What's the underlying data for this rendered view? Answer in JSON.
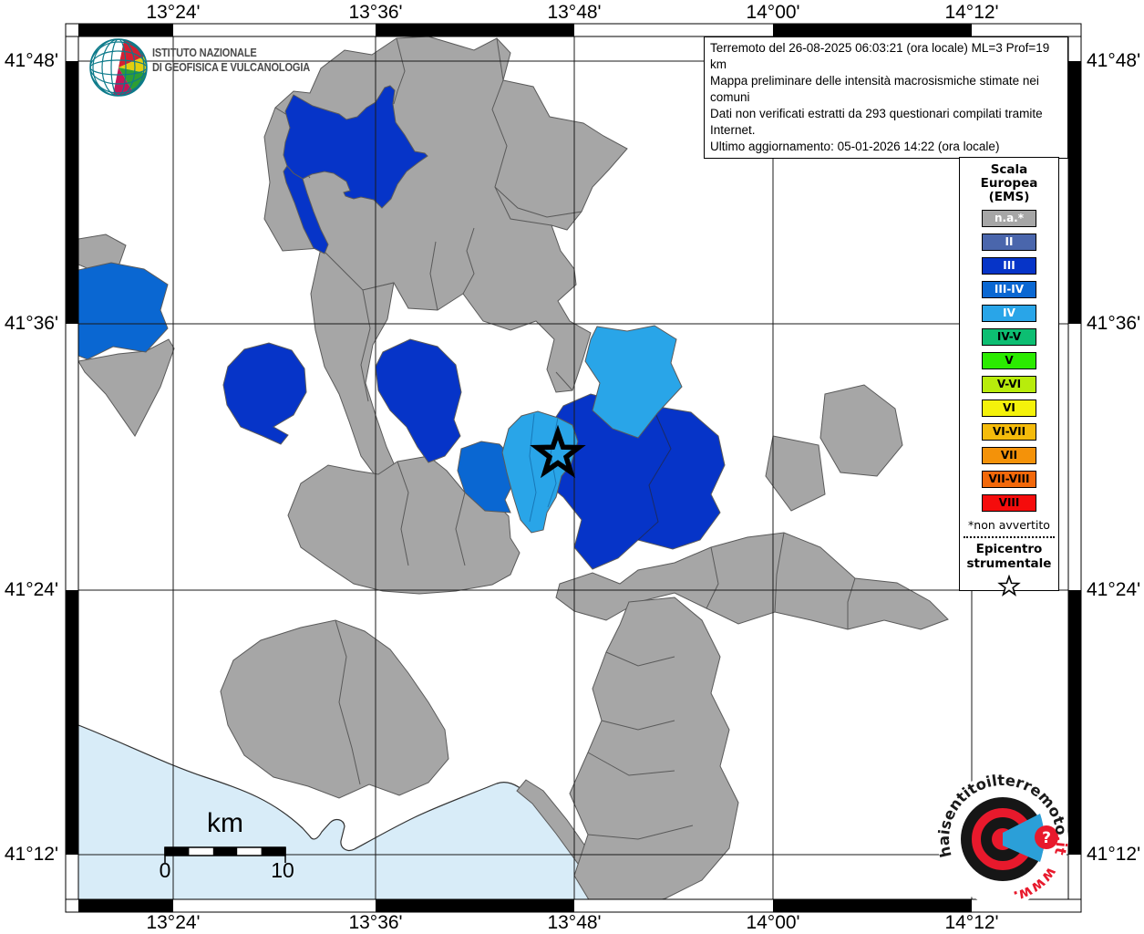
{
  "branding": {
    "org_line1": "ISTITUTO NAZIONALE",
    "org_line2": "DI GEOFISICA E VULCANOLOGIA"
  },
  "info_box": {
    "lines": [
      "Terremoto del 26-08-2025 06:03:21 (ora locale) ML=3 Prof=19 km",
      "Mappa preliminare delle intensità macrosismiche stimate nei comuni",
      "Dati non verificati estratti da 293 questionari compilati tramite Internet.",
      "Ultimo aggiornamento: 05-01-2026 14:22 (ora locale)"
    ]
  },
  "legend": {
    "title_lines": [
      "Scala",
      "Europea",
      "(EMS)"
    ],
    "items": [
      {
        "label": "n.a.*",
        "color": "#A6A6A6",
        "text_color": "#FFFFFF"
      },
      {
        "label": "II",
        "color": "#4A66AC",
        "text_color": "#FFFFFF"
      },
      {
        "label": "III",
        "color": "#0634C8",
        "text_color": "#FFFFFF"
      },
      {
        "label": "III-IV",
        "color": "#0A67D2",
        "text_color": "#FFFFFF"
      },
      {
        "label": "IV",
        "color": "#29A5E8",
        "text_color": "#FFFFFF"
      },
      {
        "label": "IV-V",
        "color": "#0DBE72",
        "text_color": "#000000"
      },
      {
        "label": "V",
        "color": "#2BEB00",
        "text_color": "#000000"
      },
      {
        "label": "V-VI",
        "color": "#B8EC0C",
        "text_color": "#000000"
      },
      {
        "label": "VI",
        "color": "#F4F20B",
        "text_color": "#000000"
      },
      {
        "label": "VI-VII",
        "color": "#F4BB0B",
        "text_color": "#000000"
      },
      {
        "label": "VII",
        "color": "#F49209",
        "text_color": "#000000"
      },
      {
        "label": "VII-VIII",
        "color": "#F2680A",
        "text_color": "#000000"
      },
      {
        "label": "VIII",
        "color": "#F50C0C",
        "text_color": "#000000"
      }
    ],
    "footnote": "*non avvertito",
    "epicenter_line1": "Epicentro",
    "epicenter_line2": "strumentale"
  },
  "axes": {
    "x_labels": [
      "13°24'",
      "13°36'",
      "13°48'",
      "14°00'",
      "14°12'"
    ],
    "y_labels": [
      "41°48'",
      "41°36'",
      "41°24'",
      "41°12'"
    ]
  },
  "scale_bar": {
    "unit": "km",
    "start_label": "0",
    "end_label": "10"
  },
  "watermark": {
    "text_main": "haisentitoilterremoto",
    "text_suffix": ".it",
    "text_www": "www.",
    "question_mark": "?"
  },
  "map": {
    "colors": {
      "sea": "#D8ECF8",
      "na": "#A6A6A6",
      "border": "#5A5A5A",
      "iii": "#0634C8",
      "iii_iv": "#0A67D2",
      "iv": "#29A5E8",
      "coast": "#333333",
      "grid": "#1A1A1A"
    }
  }
}
